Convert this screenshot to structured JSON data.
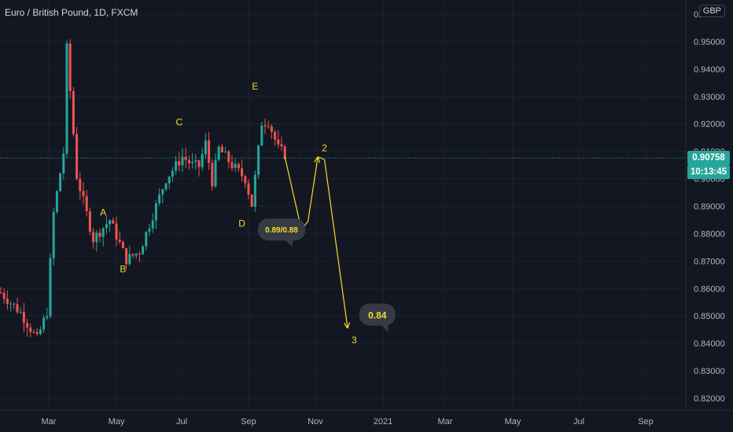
{
  "header": {
    "symbol_title": "Euro / British Pound, 1D, FXCM",
    "currency_badge": "GBP"
  },
  "price_tags": {
    "last_price": "0.90758",
    "countdown": "10:13:45"
  },
  "colors": {
    "background": "#131722",
    "up_candle": "#26a69a",
    "down_candle": "#ef5350",
    "annotation": "#f4dd2a",
    "bubble": "#363a45"
  },
  "chart_data": {
    "type": "candlestick",
    "title": "Euro / British Pound, 1D, FXCM",
    "y_ticks": [
      "0.82000",
      "0.83000",
      "0.84000",
      "0.85000",
      "0.86000",
      "0.87000",
      "0.88000",
      "0.89000",
      "0.90000",
      "0.91000",
      "0.92000",
      "0.93000",
      "0.94000",
      "0.95000",
      "0.96000"
    ],
    "x_ticks": [
      "Mar",
      "May",
      "Jul",
      "Sep",
      "Nov",
      "2021",
      "Mar",
      "May",
      "Jul",
      "Sep"
    ],
    "ylim": [
      0.818,
      0.962
    ],
    "last_price": 0.90758,
    "pivots": [
      {
        "t": 0,
        "p": 0.8585
      },
      {
        "t": 6,
        "p": 0.8512
      },
      {
        "t": 11,
        "p": 0.8415
      },
      {
        "t": 14,
        "p": 0.8515
      },
      {
        "t": 16,
        "p": 0.8875
      },
      {
        "t": 19,
        "p": 0.9095
      },
      {
        "t": 20,
        "p": 0.9475
      },
      {
        "t": 23,
        "p": 0.901
      },
      {
        "t": 28,
        "p": 0.878
      },
      {
        "t": 33,
        "p": 0.885
      },
      {
        "t": 38,
        "p": 0.8705
      },
      {
        "t": 42,
        "p": 0.8735
      },
      {
        "t": 50,
        "p": 0.9
      },
      {
        "t": 55,
        "p": 0.908
      },
      {
        "t": 58,
        "p": 0.905
      },
      {
        "t": 60,
        "p": 0.9045
      },
      {
        "t": 62,
        "p": 0.913
      },
      {
        "t": 64,
        "p": 0.899
      },
      {
        "t": 66,
        "p": 0.911
      },
      {
        "t": 70,
        "p": 0.905
      },
      {
        "t": 74,
        "p": 0.9
      },
      {
        "t": 76,
        "p": 0.8905
      },
      {
        "t": 79,
        "p": 0.9205
      },
      {
        "t": 81,
        "p": 0.921
      },
      {
        "t": 84,
        "p": 0.911
      },
      {
        "t": 86,
        "p": 0.909
      }
    ],
    "annotations": {
      "wave_labels": [
        {
          "label": "A",
          "t": 31,
          "p": 0.8865
        },
        {
          "label": "B",
          "t": 37,
          "p": 0.866
        },
        {
          "label": "C",
          "t": 54,
          "p": 0.9195
        },
        {
          "label": "D",
          "t": 73,
          "p": 0.8825
        },
        {
          "label": "E",
          "t": 77,
          "p": 0.9325
        },
        {
          "label": "1",
          "t": 91,
          "p": 0.879
        },
        {
          "label": "2",
          "t": 98,
          "p": 0.91
        },
        {
          "label": "3",
          "t": 107,
          "p": 0.84
        }
      ],
      "projection_path": [
        {
          "t": 86,
          "p": 0.908
        },
        {
          "t": 91,
          "p": 0.8815
        },
        {
          "t": 93,
          "p": 0.8845
        },
        {
          "t": 96,
          "p": 0.908
        },
        {
          "t": 98,
          "p": 0.907
        },
        {
          "t": 105,
          "p": 0.8455
        }
      ],
      "callouts": [
        {
          "text": "0.89/0.88",
          "t": 85,
          "p": 0.8815
        },
        {
          "text": "0.84",
          "t": 114,
          "p": 0.8505
        }
      ]
    }
  }
}
